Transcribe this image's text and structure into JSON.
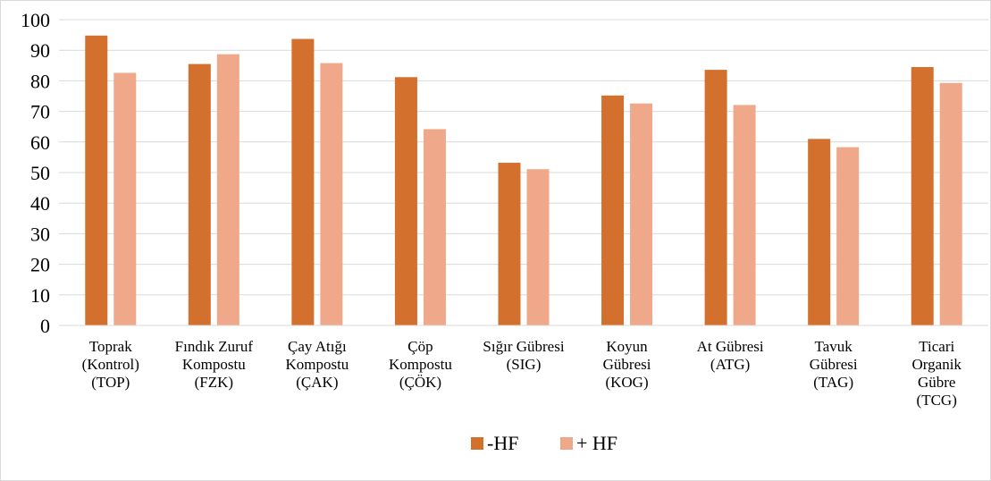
{
  "chart_data": {
    "type": "bar",
    "categories": [
      [
        "Toprak",
        "(Kontrol)",
        "(TOP)"
      ],
      [
        "Fındık Zuruf",
        "Kompostu",
        "(FZK)"
      ],
      [
        "Çay Atığı",
        "Kompostu",
        "(ÇAK)"
      ],
      [
        "Çöp",
        "Kompostu",
        "(ÇÖK)"
      ],
      [
        "Sığır Gübresi",
        "(SIG)"
      ],
      [
        "Koyun",
        "Gübresi",
        "(KOG)"
      ],
      [
        "At Gübresi",
        "(ATG)"
      ],
      [
        "Tavuk",
        "Gübresi",
        "(TAG)"
      ],
      [
        "Ticari",
        "Organik",
        "Gübre",
        "(TCG)"
      ]
    ],
    "series": [
      {
        "name": "-HF",
        "color": "#d4702d",
        "values": [
          94.8,
          85.5,
          93.7,
          81.2,
          53.2,
          75.2,
          83.6,
          61.0,
          84.5
        ]
      },
      {
        "name": "+ HF",
        "color": "#f0a88a",
        "values": [
          82.6,
          88.7,
          85.8,
          64.2,
          51.1,
          72.6,
          72.1,
          58.3,
          79.3
        ]
      }
    ],
    "yticks": [
      "0",
      "10",
      "20",
      "30",
      "40",
      "50",
      "60",
      "70",
      "80",
      "90",
      "100"
    ],
    "ylim": [
      0,
      100
    ],
    "grid": true,
    "legend": "bottom",
    "title": "",
    "xlabel": "",
    "ylabel": ""
  }
}
